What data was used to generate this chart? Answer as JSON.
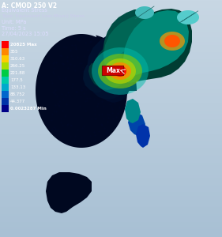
{
  "title_line1": "A: CMOD 250 V2",
  "title_line2": "Equivalent Stress",
  "title_line3": "Type: Equivalent (von-Mises) Stress",
  "title_line4": "Unit: MPa",
  "title_line5": "Time: 5 s",
  "title_line6": "27/04/2023 15:05",
  "legend_labels": [
    "20825 Max",
    "355",
    "310.63",
    "266.25",
    "221.88",
    "177.5",
    "133.13",
    "88.752",
    "44.377",
    "0.0023287 Min"
  ],
  "legend_colors": [
    "#ff0000",
    "#ff8800",
    "#ffcc00",
    "#aadd00",
    "#00cc44",
    "#00ccaa",
    "#00aacc",
    "#0066cc",
    "#0033aa",
    "#000088"
  ],
  "bg_top": "#c8d8e8",
  "bg_bottom": "#a8c0d8",
  "body_dark": "#00001a",
  "body_mid": "#000033",
  "body_teal": "#006655",
  "rod_teal": "#007766",
  "rod_cap": "#44cccc",
  "stress_red": "#ff1100",
  "stress_orange": "#ff8800",
  "stress_yellow": "#ffee00",
  "stress_green": "#88ee00",
  "arm_right_blue": "#002266",
  "arm_right_teal": "#006677"
}
